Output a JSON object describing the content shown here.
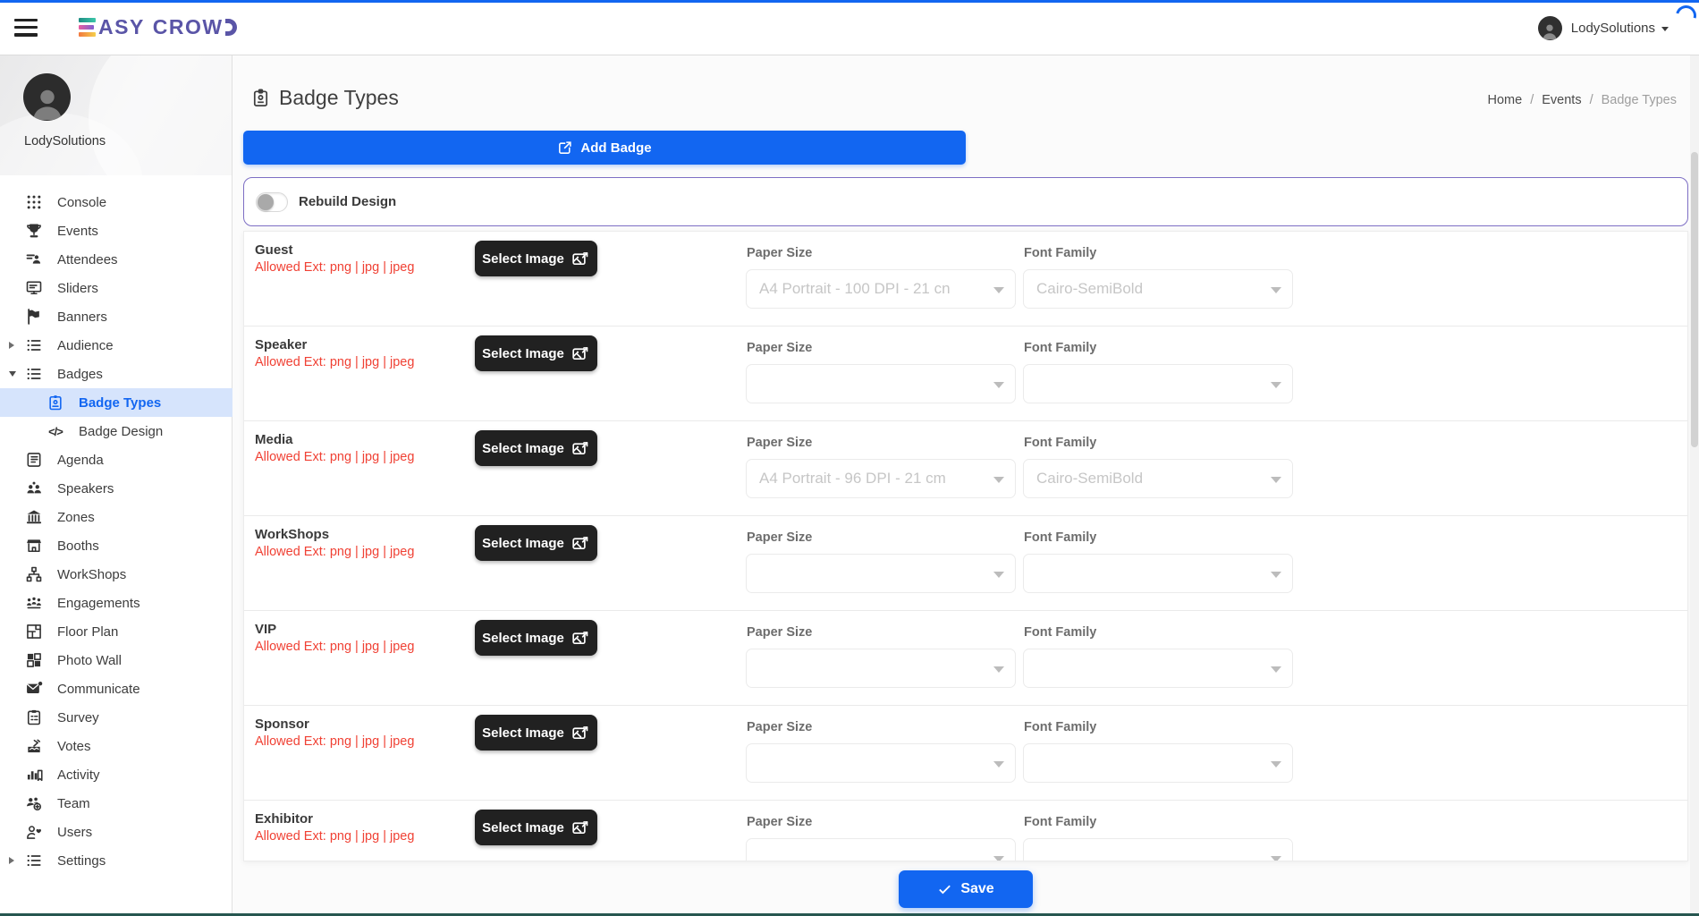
{
  "colors": {
    "primary": "#1266f1",
    "danger": "#f04134",
    "active_item_bg": "#d6e4fc",
    "brand_purple": "#5a55a7",
    "rebuild_panel_border": "#7d6ec4",
    "select_image_bg": "#212121"
  },
  "header": {
    "brand": "EASYCROWD",
    "user_label": "LodySolutions"
  },
  "sidebar": {
    "profile_name": "LodySolutions",
    "items": [
      {
        "label": "Console",
        "icon": "console-grid"
      },
      {
        "label": "Events",
        "icon": "trophy"
      },
      {
        "label": "Attendees",
        "icon": "attendees-list"
      },
      {
        "label": "Sliders",
        "icon": "monitor"
      },
      {
        "label": "Banners",
        "icon": "flag"
      },
      {
        "label": "Audience",
        "icon": "list",
        "expandable": true,
        "expanded": false
      },
      {
        "label": "Badges",
        "icon": "list",
        "expandable": true,
        "expanded": true
      },
      {
        "label": "Badge Types",
        "icon": "badge-id",
        "sub": true,
        "active": true
      },
      {
        "label": "Badge Design",
        "icon": "code",
        "sub": true
      },
      {
        "label": "Agenda",
        "icon": "agenda"
      },
      {
        "label": "Speakers",
        "icon": "people-two"
      },
      {
        "label": "Zones",
        "icon": "bank"
      },
      {
        "label": "Booths",
        "icon": "storefront"
      },
      {
        "label": "WorkShops",
        "icon": "sitemap"
      },
      {
        "label": "Engagements",
        "icon": "people-three"
      },
      {
        "label": "Floor Plan",
        "icon": "floor-plan"
      },
      {
        "label": "Photo Wall",
        "icon": "photo-grid"
      },
      {
        "label": "Communicate",
        "icon": "mail-dot"
      },
      {
        "label": "Survey",
        "icon": "clipboard"
      },
      {
        "label": "Votes",
        "icon": "ballot-box"
      },
      {
        "label": "Activity",
        "icon": "bar-chart"
      },
      {
        "label": "Team",
        "icon": "team-add"
      },
      {
        "label": "Users",
        "icon": "user-heart"
      },
      {
        "label": "Settings",
        "icon": "list",
        "expandable": true,
        "expanded": false
      }
    ]
  },
  "page": {
    "title": "Badge Types",
    "breadcrumb": [
      "Home",
      "Events",
      "Badge Types"
    ],
    "add_button_label": "Add Badge",
    "rebuild_label": "Rebuild Design",
    "save_label": "Save"
  },
  "row_labels": {
    "allowed": "Allowed Ext: png | jpg | jpeg",
    "select_image": "Select Image",
    "paper": "Paper Size",
    "font": "Font Family"
  },
  "badge_rows": [
    {
      "name": "Guest",
      "paper_value": "A4 Portrait - 100 DPI - 21 cn",
      "font_value": "Cairo-SemiBold"
    },
    {
      "name": "Speaker",
      "paper_value": "",
      "font_value": ""
    },
    {
      "name": "Media",
      "paper_value": "A4 Portrait - 96 DPI - 21 cm",
      "font_value": "Cairo-SemiBold"
    },
    {
      "name": "WorkShops",
      "paper_value": "",
      "font_value": ""
    },
    {
      "name": "VIP",
      "paper_value": "",
      "font_value": ""
    },
    {
      "name": "Sponsor",
      "paper_value": "",
      "font_value": ""
    },
    {
      "name": "Exhibitor",
      "paper_value": "",
      "font_value": ""
    }
  ]
}
